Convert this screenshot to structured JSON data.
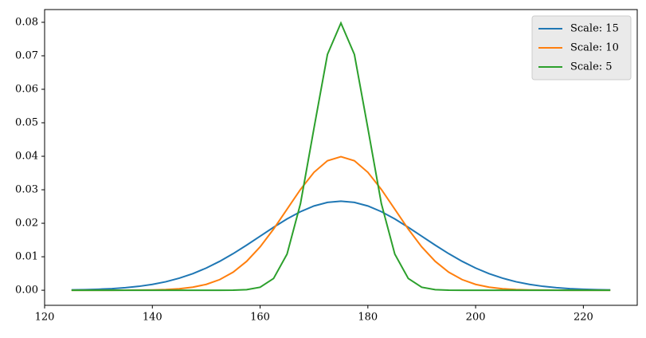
{
  "chart_data": {
    "type": "line",
    "x": [
      125,
      127.5,
      130,
      132.5,
      135,
      137.5,
      140,
      142.5,
      145,
      147.5,
      150,
      152.5,
      155,
      157.5,
      160,
      162.5,
      165,
      167.5,
      170,
      172.5,
      175,
      177.5,
      180,
      182.5,
      185,
      187.5,
      190,
      192.5,
      195,
      197.5,
      200,
      202.5,
      205,
      207.5,
      210,
      212.5,
      215,
      217.5,
      220,
      222.5,
      225
    ],
    "series": [
      {
        "name": "Scale: 15",
        "color": "#1f77b4",
        "values": [
          0.0001,
          0.00018,
          0.0003,
          0.00048,
          0.00076,
          0.00117,
          0.00175,
          0.00254,
          0.0036,
          0.00495,
          0.00663,
          0.00863,
          0.01093,
          0.01347,
          0.01613,
          0.01879,
          0.0213,
          0.02347,
          0.02516,
          0.02623,
          0.0266,
          0.02623,
          0.02516,
          0.02347,
          0.0213,
          0.01879,
          0.01613,
          0.01347,
          0.01093,
          0.00863,
          0.00663,
          0.00495,
          0.0036,
          0.00254,
          0.00175,
          0.00117,
          0.00076,
          0.00048,
          0.0003,
          0.00018,
          0.0001
        ]
      },
      {
        "name": "Scale: 10",
        "color": "#ff7f0e",
        "values": [
          0,
          0,
          0,
          0,
          1e-05,
          4e-05,
          9e-05,
          0.0002,
          0.00044,
          0.00091,
          0.00175,
          0.00317,
          0.0054,
          0.00863,
          0.01295,
          0.01826,
          0.0242,
          0.03011,
          0.03521,
          0.03867,
          0.03989,
          0.03867,
          0.03521,
          0.03011,
          0.0242,
          0.01826,
          0.01295,
          0.00863,
          0.0054,
          0.00317,
          0.00175,
          0.00091,
          0.00044,
          0.0002,
          9e-05,
          4e-05,
          1e-05,
          0,
          0,
          0,
          0
        ]
      },
      {
        "name": "Scale: 5",
        "color": "#2ca02c",
        "values": [
          0,
          0,
          0,
          0,
          0,
          0,
          0,
          0,
          0,
          0,
          0,
          0,
          3e-05,
          0.00017,
          0.00089,
          0.00351,
          0.0108,
          0.0259,
          0.04839,
          0.07041,
          0.07979,
          0.07041,
          0.04839,
          0.0259,
          0.0108,
          0.00351,
          0.00089,
          0.00017,
          3e-05,
          0,
          0,
          0,
          0,
          0,
          0,
          0,
          0,
          0,
          0,
          0,
          0
        ]
      }
    ],
    "xlim": [
      120,
      230
    ],
    "xticks": [
      120,
      140,
      160,
      180,
      200,
      220
    ],
    "ylim": [
      -0.0045,
      0.0838
    ],
    "yticks": [
      {
        "value": 0,
        "label": "0.00"
      },
      0.01,
      0.02,
      0.03,
      0.04,
      0.05,
      0.06,
      0.07,
      0.08
    ],
    "grid": false,
    "legend": "upper right"
  }
}
